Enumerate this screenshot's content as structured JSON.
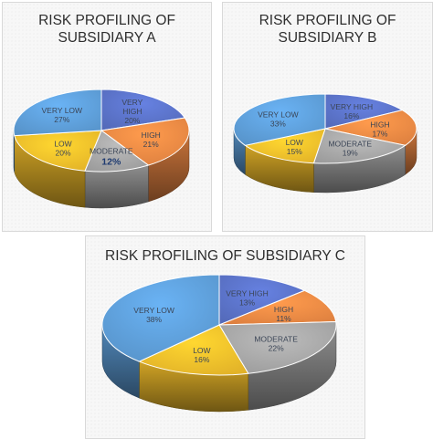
{
  "colors": {
    "very_high": "#5b73c9",
    "high": "#ef8a45",
    "moderate": "#a8a8a8",
    "low": "#f5c02b",
    "very_low": "#5fa0db"
  },
  "chart_data": [
    {
      "type": "pie",
      "title": [
        "RISK PROFILING OF",
        "SUBSIDIARY A"
      ],
      "slices": [
        {
          "label": "VERY HIGH",
          "value": 20,
          "display": "20%",
          "color": "#5b73c9"
        },
        {
          "label": "HIGH",
          "value": 21,
          "display": "21%",
          "color": "#ef8a45"
        },
        {
          "label": "MODERATE",
          "value": 12,
          "display": "12%",
          "color": "#a8a8a8",
          "emphasis": true
        },
        {
          "label": "LOW",
          "value": 20,
          "display": "20%",
          "color": "#f5c02b"
        },
        {
          "label": "VERY LOW",
          "value": 27,
          "display": "27%",
          "color": "#5fa0db"
        }
      ]
    },
    {
      "type": "pie",
      "title": [
        "RISK PROFILING OF",
        "SUBSIDIARY B"
      ],
      "slices": [
        {
          "label": "VERY HIGH",
          "value": 16,
          "display": "16%",
          "color": "#5b73c9"
        },
        {
          "label": "HIGH",
          "value": 17,
          "display": "17%",
          "color": "#ef8a45"
        },
        {
          "label": "MODERATE",
          "value": 19,
          "display": "19%",
          "color": "#a8a8a8"
        },
        {
          "label": "LOW",
          "value": 15,
          "display": "15%",
          "color": "#f5c02b"
        },
        {
          "label": "VERY LOW",
          "value": 33,
          "display": "33%",
          "color": "#5fa0db"
        }
      ]
    },
    {
      "type": "pie",
      "title": [
        "RISK PROFILING OF SUBSIDIARY C"
      ],
      "slices": [
        {
          "label": "VERY HIGH",
          "value": 13,
          "display": "13%",
          "color": "#5b73c9"
        },
        {
          "label": "HIGH",
          "value": 11,
          "display": "11%",
          "color": "#ef8a45"
        },
        {
          "label": "MODERATE",
          "value": 22,
          "display": "22%",
          "color": "#a8a8a8"
        },
        {
          "label": "LOW",
          "value": 16,
          "display": "16%",
          "color": "#f5c02b"
        },
        {
          "label": "VERY LOW",
          "value": 38,
          "display": "38%",
          "color": "#5fa0db"
        }
      ]
    }
  ]
}
